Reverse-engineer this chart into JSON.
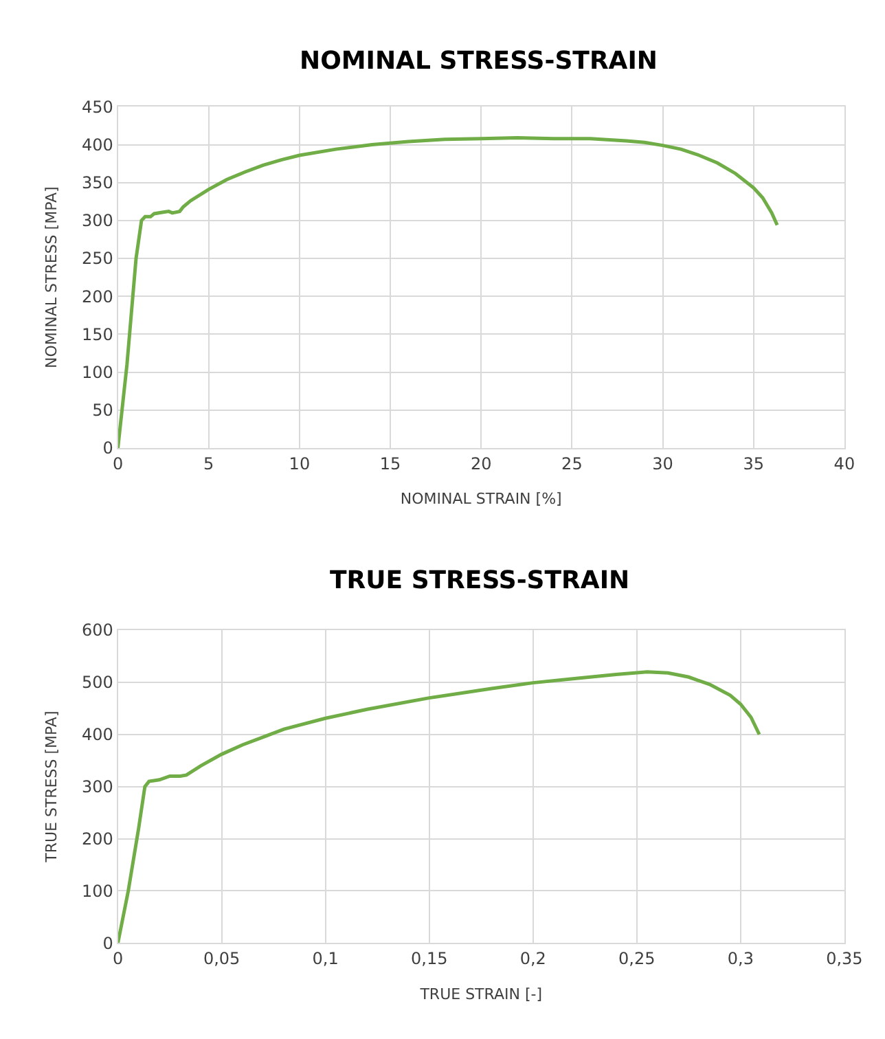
{
  "chart_data": [
    {
      "type": "line",
      "title": "NOMINAL STRESS-STRAIN",
      "xlabel": "NOMINAL STRAIN [%]",
      "ylabel": "NOMINAL STRESS [MPA]",
      "series": [
        {
          "color": "#70ad47",
          "x": [
            0,
            0.5,
            1,
            1.3,
            1.5,
            1.8,
            2,
            2.5,
            2.8,
            3,
            3.4,
            3.6,
            4,
            5,
            6,
            7,
            8,
            9,
            10,
            12,
            14,
            16,
            18,
            20,
            22,
            24,
            26,
            28,
            29,
            30,
            31,
            32,
            33,
            34,
            35,
            35.5,
            36,
            36.3
          ],
          "values": [
            0,
            110,
            250,
            300,
            305,
            305,
            309,
            311,
            312,
            310,
            312,
            318,
            326,
            341,
            354,
            364,
            373,
            380,
            386,
            394,
            400,
            404,
            407,
            408,
            409,
            408,
            408,
            405,
            403,
            399,
            394,
            386,
            376,
            362,
            343,
            330,
            310,
            294
          ]
        }
      ],
      "xlim": [
        0,
        40
      ],
      "xticks": [
        0,
        5,
        10,
        15,
        20,
        25,
        30,
        35,
        40
      ],
      "ylim": [
        0,
        450
      ],
      "yticks": [
        0,
        50,
        100,
        150,
        200,
        250,
        300,
        350,
        400,
        450
      ],
      "grid": true,
      "marker": "none",
      "line_style": "solid"
    },
    {
      "type": "line",
      "title": "TRUE STRESS-STRAIN",
      "xlabel": "TRUE STRAIN [-]",
      "ylabel": "TRUE STRESS [MPA]",
      "series": [
        {
          "color": "#70ad47",
          "x": [
            0,
            0.005,
            0.01,
            0.013,
            0.015,
            0.02,
            0.025,
            0.03,
            0.033,
            0.04,
            0.05,
            0.06,
            0.07,
            0.08,
            0.1,
            0.12,
            0.15,
            0.18,
            0.2,
            0.22,
            0.24,
            0.255,
            0.265,
            0.275,
            0.285,
            0.295,
            0.3,
            0.305,
            0.309
          ],
          "values": [
            0,
            100,
            220,
            300,
            310,
            313,
            320,
            320,
            322,
            340,
            362,
            380,
            395,
            410,
            431,
            448,
            470,
            488,
            499,
            507,
            515,
            520,
            518,
            510,
            496,
            475,
            458,
            433,
            400
          ]
        }
      ],
      "xlim": [
        0,
        0.35
      ],
      "xticks": [
        0,
        {
          "value": 0.05,
          "label": "0,05"
        },
        {
          "value": 0.1,
          "label": "0,1"
        },
        {
          "value": 0.15,
          "label": "0,15"
        },
        {
          "value": 0.2,
          "label": "0,2"
        },
        {
          "value": 0.25,
          "label": "0,25"
        },
        {
          "value": 0.3,
          "label": "0,3"
        },
        {
          "value": 0.35,
          "label": "0,35"
        }
      ],
      "ylim": [
        0,
        600
      ],
      "yticks": [
        0,
        100,
        200,
        300,
        400,
        500,
        600
      ],
      "grid": true,
      "marker": "none",
      "line_style": "solid"
    }
  ]
}
